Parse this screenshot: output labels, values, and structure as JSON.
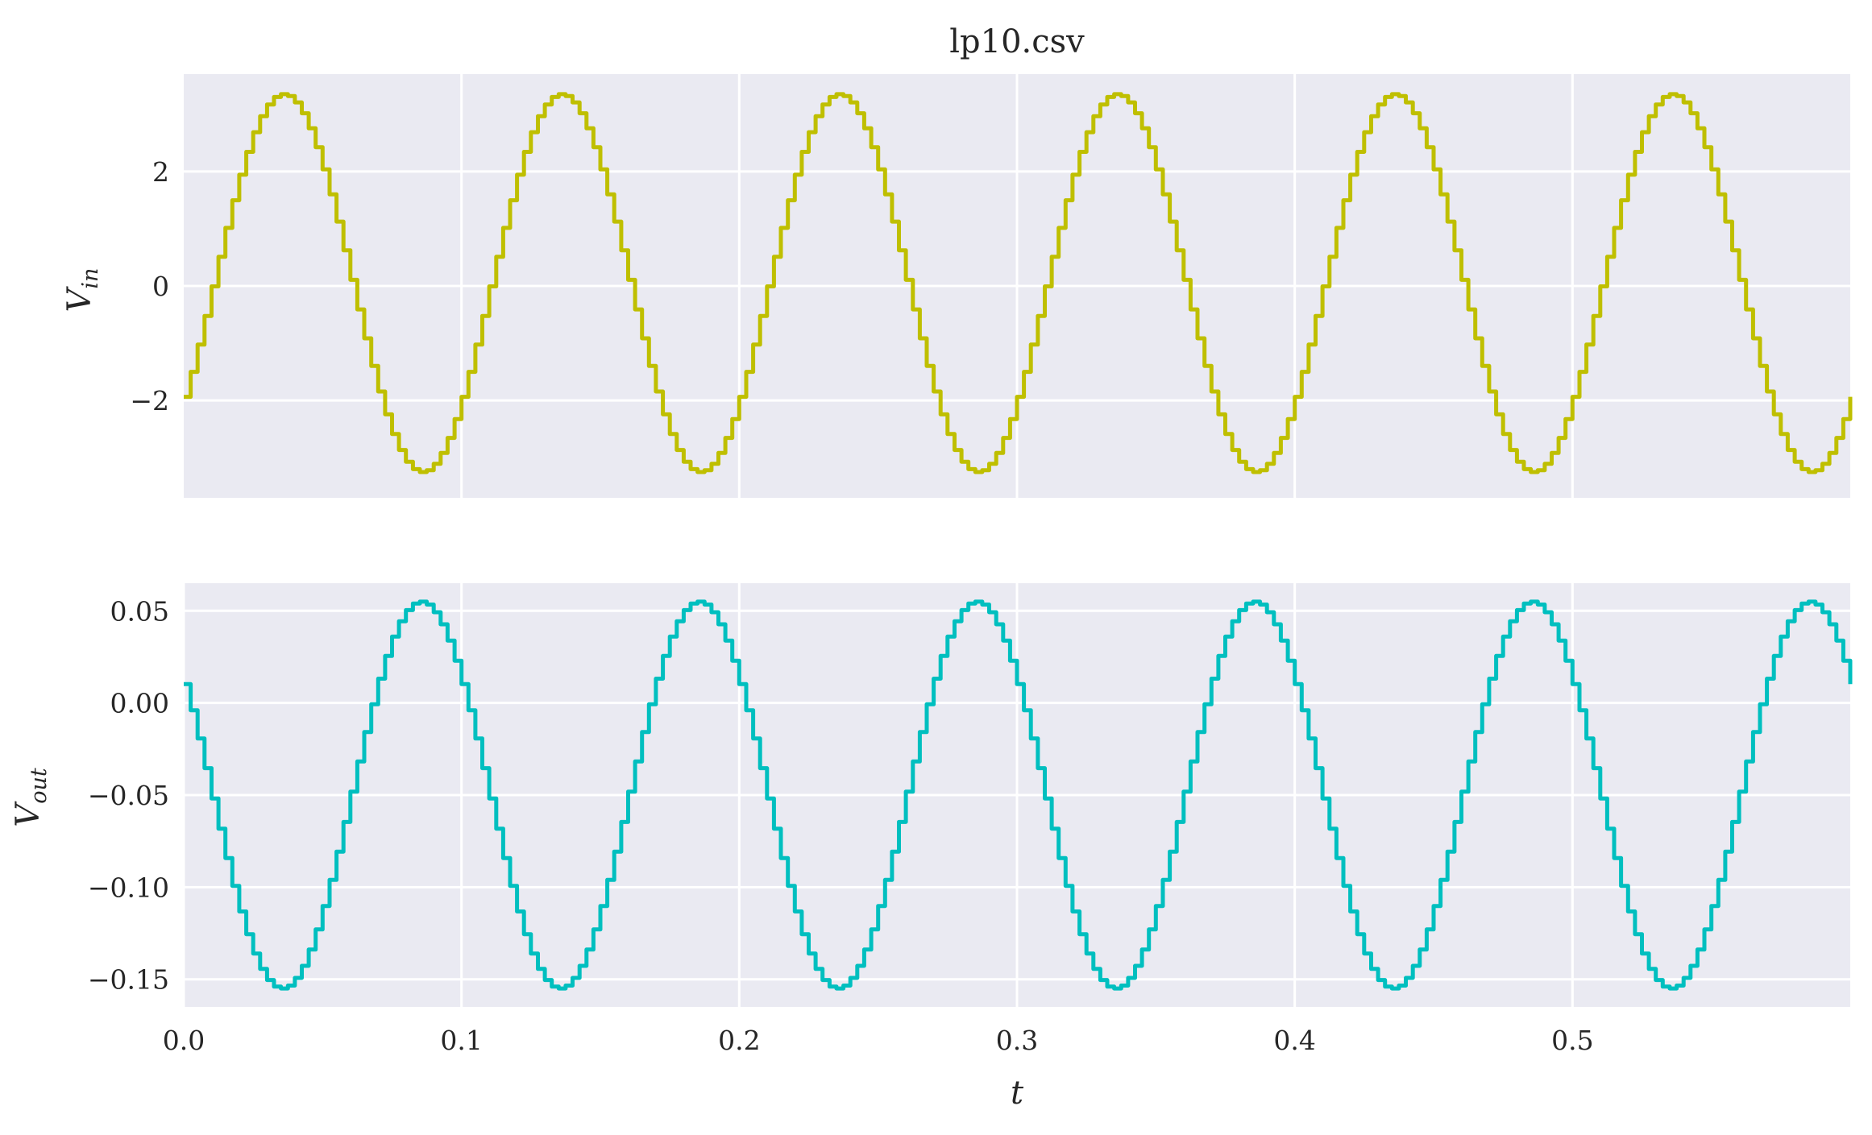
{
  "chart_data": [
    {
      "type": "line",
      "title": "lp10.csv",
      "ylabel": "V",
      "ylabel_sub": "in",
      "xlabel": "",
      "xlim": [
        0.0,
        0.6
      ],
      "ylim": [
        -3.7,
        3.7
      ],
      "grid": true,
      "color": "#bfbf00",
      "yticks": [
        {
          "value": -2,
          "label": "−2"
        },
        {
          "value": 0,
          "label": "0"
        },
        {
          "value": 2,
          "label": "2"
        }
      ],
      "xticks": [
        0.1,
        0.2,
        0.3,
        0.4,
        0.5
      ],
      "xtick_labels_shown": false,
      "series": [
        {
          "signal": {
            "amplitude": 3.3,
            "offset": 0.05,
            "frequency_hz": 10,
            "phase_deg": -37,
            "step": 0.0025
          },
          "x": [
            0.0,
            0.0125,
            0.025,
            0.0375,
            0.05,
            0.0625,
            0.075,
            0.0875,
            0.1,
            0.1125,
            0.125,
            0.1375,
            0.15,
            0.1625,
            0.175,
            0.1875,
            0.2,
            0.2125,
            0.225,
            0.2375,
            0.25,
            0.2625,
            0.275,
            0.2875,
            0.3,
            0.3125,
            0.325,
            0.3375,
            0.35,
            0.3625,
            0.375,
            0.3875,
            0.4,
            0.4125,
            0.425,
            0.4375,
            0.45,
            0.4625,
            0.475,
            0.4875,
            0.5,
            0.5125,
            0.525,
            0.5375,
            0.55,
            0.5625,
            0.575,
            0.5875,
            0.6
          ],
          "y": [
            -1.95,
            0.71,
            2.68,
            3.35,
            2.58,
            0.53,
            -1.92,
            -3.28,
            -1.95,
            0.71,
            2.68,
            3.35,
            2.58,
            0.53,
            -1.92,
            -3.28,
            -1.95,
            0.71,
            2.68,
            3.35,
            2.58,
            0.53,
            -1.92,
            -3.28,
            -1.95,
            0.71,
            2.68,
            3.35,
            2.58,
            0.53,
            -1.92,
            -3.28,
            -1.95,
            0.71,
            2.68,
            3.35,
            2.58,
            0.53,
            -1.92,
            -3.28,
            -1.95,
            0.71,
            2.68,
            3.35,
            2.58,
            0.53,
            -1.92,
            -3.28,
            -1.95
          ]
        }
      ]
    },
    {
      "type": "line",
      "title": "",
      "ylabel": "V",
      "ylabel_sub": "out",
      "xlabel": "t",
      "xlim": [
        0.0,
        0.6
      ],
      "ylim": [
        -0.165,
        0.065
      ],
      "grid": true,
      "color": "#00bfbf",
      "yticks": [
        {
          "value": -0.15,
          "label": "−0.15"
        },
        {
          "value": -0.1,
          "label": "−0.10"
        },
        {
          "value": -0.05,
          "label": "−0.05"
        },
        {
          "value": 0.0,
          "label": "0.00"
        },
        {
          "value": 0.05,
          "label": "0.05"
        }
      ],
      "xticks": [
        0.0,
        0.1,
        0.2,
        0.3,
        0.4,
        0.5
      ],
      "xtick_labels": [
        "0.0",
        "0.1",
        "0.2",
        "0.3",
        "0.4",
        "0.5"
      ],
      "series": [
        {
          "signal": {
            "amplitude": 0.105,
            "offset": -0.05,
            "frequency_hz": 10,
            "phase_deg": 145,
            "step": 0.0025
          },
          "x": [
            0.0,
            0.0125,
            0.025,
            0.0375,
            0.05,
            0.0625,
            0.075,
            0.0875,
            0.1,
            0.1125,
            0.125,
            0.1375,
            0.15,
            0.1625,
            0.175,
            0.1875,
            0.2,
            0.2125,
            0.225,
            0.2375,
            0.25,
            0.2625,
            0.275,
            0.2875,
            0.3,
            0.3125,
            0.325,
            0.3375,
            0.35,
            0.3625,
            0.375,
            0.3875,
            0.4,
            0.4125,
            0.425,
            0.4375,
            0.45,
            0.4625,
            0.475,
            0.4875,
            0.5,
            0.5125,
            0.525,
            0.5375,
            0.55,
            0.5625,
            0.575,
            0.5875,
            0.6
          ],
          "y": [
            0.01,
            -0.074,
            -0.137,
            -0.155,
            -0.117,
            -0.041,
            0.027,
            0.054,
            0.01,
            -0.074,
            -0.137,
            -0.155,
            -0.117,
            -0.041,
            0.027,
            0.054,
            0.01,
            -0.074,
            -0.137,
            -0.155,
            -0.117,
            -0.041,
            0.027,
            0.054,
            0.01,
            -0.074,
            -0.137,
            -0.155,
            -0.117,
            -0.041,
            0.027,
            0.054,
            0.01,
            -0.074,
            -0.137,
            -0.155,
            -0.117,
            -0.041,
            0.027,
            0.054,
            0.01,
            -0.074,
            -0.137,
            -0.155,
            -0.117,
            -0.041,
            0.027,
            0.054,
            0.01
          ]
        }
      ]
    }
  ]
}
